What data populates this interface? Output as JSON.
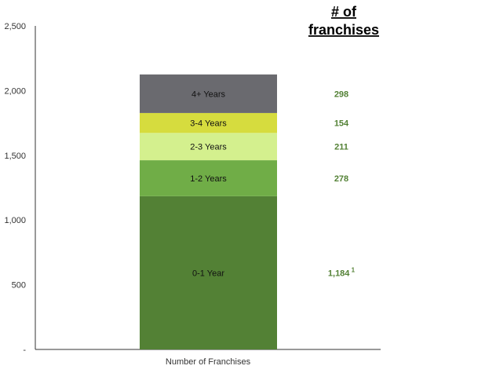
{
  "chart_data": {
    "type": "bar",
    "stacked": true,
    "categories": [
      "Number of Franchises"
    ],
    "ylim": [
      0,
      2500
    ],
    "yticks": [
      {
        "value": 0,
        "label": "-"
      },
      {
        "value": 500,
        "label": "500"
      },
      {
        "value": 1000,
        "label": "1,000"
      },
      {
        "value": 1500,
        "label": "1,500"
      },
      {
        "value": 2000,
        "label": "2,000"
      },
      {
        "value": 2500,
        "label": "2,500"
      }
    ],
    "series": [
      {
        "name": "0-1 Year",
        "values": [
          1184
        ],
        "count_label": "1,184",
        "footnote": "1",
        "color": "#538135"
      },
      {
        "name": "1-2 Years",
        "values": [
          278
        ],
        "count_label": "278",
        "footnote": "",
        "color": "#70AD47"
      },
      {
        "name": "2-3 Years",
        "values": [
          211
        ],
        "count_label": "211",
        "footnote": "",
        "color": "#D4F08E"
      },
      {
        "name": "3-4 Years",
        "values": [
          154
        ],
        "count_label": "154",
        "footnote": "",
        "color": "#D6DC3E"
      },
      {
        "name": "4+ Years",
        "values": [
          298
        ],
        "count_label": "298",
        "footnote": "",
        "color": "#6A6A6F"
      }
    ],
    "count_header": [
      "# of",
      "franchises"
    ],
    "count_color": "#538135",
    "grid": false
  }
}
